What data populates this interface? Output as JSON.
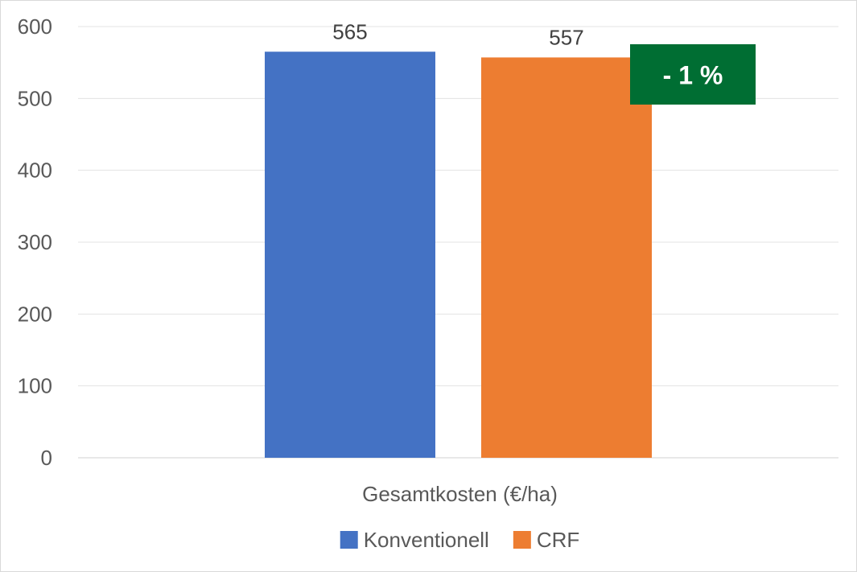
{
  "chart_data": {
    "type": "bar",
    "categories": [
      "Gesamtkosten (€/ha)"
    ],
    "series": [
      {
        "name": "Konventionell",
        "values": [
          565
        ],
        "color": "#4472C4"
      },
      {
        "name": "CRF",
        "values": [
          557
        ],
        "color": "#ED7D31"
      }
    ],
    "ylim": [
      0,
      600
    ],
    "yticks": [
      0,
      100,
      200,
      300,
      400,
      500,
      600
    ],
    "grid": true,
    "legend_position": "bottom",
    "annotations": [
      {
        "text": "- 1 %",
        "background": "#006E33",
        "color": "#FFFFFF",
        "anchor_series": "CRF"
      }
    ]
  }
}
